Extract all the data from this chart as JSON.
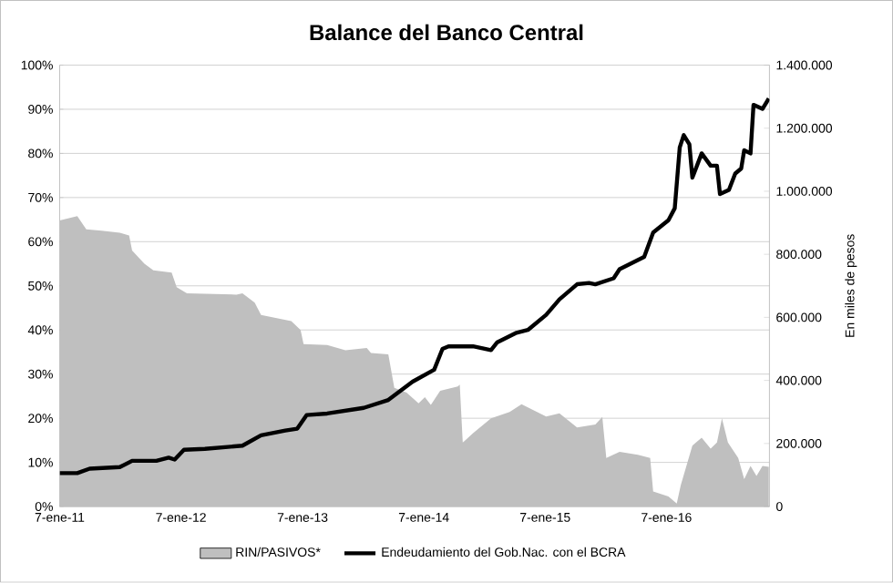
{
  "chart_data": {
    "type": "line",
    "title": "Balance del Banco Central",
    "y2label": "En miles de pesos",
    "xlim": [
      "2011-01-07",
      "2016-11-12"
    ],
    "xticks": [
      {
        "value": "2011-01-07",
        "label": "7-ene-11"
      },
      {
        "value": "2012-01-07",
        "label": "7-ene-12"
      },
      {
        "value": "2013-01-07",
        "label": "7-ene-13"
      },
      {
        "value": "2014-01-07",
        "label": "7-ene-14"
      },
      {
        "value": "2015-01-07",
        "label": "7-ene-15"
      },
      {
        "value": "2016-01-07",
        "label": "7-ene-16"
      }
    ],
    "ylim": [
      0,
      100
    ],
    "yticks": [
      {
        "value": 0,
        "label": "0%"
      },
      {
        "value": 10,
        "label": "10%"
      },
      {
        "value": 20,
        "label": "20%"
      },
      {
        "value": 30,
        "label": "30%"
      },
      {
        "value": 40,
        "label": "40%"
      },
      {
        "value": 50,
        "label": "50%"
      },
      {
        "value": 60,
        "label": "60%"
      },
      {
        "value": 70,
        "label": "70%"
      },
      {
        "value": 80,
        "label": "80%"
      },
      {
        "value": 90,
        "label": "90%"
      },
      {
        "value": 100,
        "label": "100%"
      }
    ],
    "y2lim": [
      0,
      1400000
    ],
    "y2ticks": [
      0,
      {
        "value": 200000,
        "label": "200.000"
      },
      {
        "value": 400000,
        "label": "400.000"
      },
      {
        "value": 600000,
        "label": "600.000"
      },
      {
        "value": 800000,
        "label": "800.000"
      },
      {
        "value": 1000000,
        "label": "1.000.000"
      },
      {
        "value": 1200000,
        "label": "1.200.000"
      },
      {
        "value": 1400000,
        "label": "1.400.000"
      }
    ],
    "grid": "y",
    "legend": "bottom",
    "series": [
      {
        "name": "RIN/PASIVOS*",
        "type": "area",
        "color": "#bfbfbf",
        "x": [
          "2011-01-07",
          "2011-03-01",
          "2011-03-28",
          "2011-05-13",
          "2011-07-07",
          "2011-08-04",
          "2011-08-13",
          "2011-09-19",
          "2011-10-16",
          "2011-12-10",
          "2011-12-25",
          "2012-01-25",
          "2012-06-22",
          "2012-07-10",
          "2012-08-16",
          "2012-09-04",
          "2012-12-04",
          "2013-01-01",
          "2013-01-10",
          "2013-03-22",
          "2013-05-16",
          "2013-07-19",
          "2013-08-01",
          "2013-09-22",
          "2013-10-10",
          "2013-11-16",
          "2013-12-22",
          "2014-01-10",
          "2014-01-28",
          "2014-02-25",
          "2014-04-19",
          "2014-04-25",
          "2014-05-04",
          "2014-06-04",
          "2014-07-28",
          "2014-09-22",
          "2014-10-28",
          "2015-01-10",
          "2015-02-19",
          "2015-04-13",
          "2015-06-07",
          "2015-06-28",
          "2015-07-10",
          "2015-08-19",
          "2015-10-13",
          "2015-11-19",
          "2015-11-28",
          "2016-01-13",
          "2016-02-07",
          "2016-02-19",
          "2016-03-25",
          "2016-04-22",
          "2016-05-19",
          "2016-06-07",
          "2016-06-22",
          "2016-07-10",
          "2016-08-10",
          "2016-08-28",
          "2016-09-16",
          "2016-10-04",
          "2016-10-22",
          "2016-11-10"
        ],
        "values": [
          64.8,
          65.8,
          62.8,
          62.5,
          62,
          61.4,
          58,
          55,
          53.5,
          53,
          49.7,
          48.3,
          48,
          48.3,
          46.2,
          43.4,
          42,
          40,
          36.8,
          36.6,
          35.4,
          35.9,
          34.8,
          34.5,
          26.9,
          25.8,
          23.4,
          24.8,
          23,
          26.2,
          27.2,
          27.6,
          14.5,
          16.6,
          20,
          21.4,
          23.2,
          20.4,
          21.1,
          17.9,
          18.6,
          20.3,
          11,
          12.4,
          11.7,
          11,
          3.4,
          2.3,
          0.7,
          4.8,
          13.8,
          15.6,
          13.1,
          14.5,
          20,
          14.5,
          11,
          6.2,
          9.2,
          6.9,
          9.2,
          9
        ]
      },
      {
        "name": "Endeudamiento del Gob.Nac. con el BCRA",
        "axis": "y2",
        "color": "#000000",
        "x": [
          "2011-01-07",
          "2011-03-01",
          "2011-04-07",
          "2011-07-07",
          "2011-08-13",
          "2011-10-25",
          "2011-12-01",
          "2011-12-19",
          "2012-01-16",
          "2012-03-19",
          "2012-07-10",
          "2012-09-04",
          "2012-11-16",
          "2012-12-22",
          "2013-01-19",
          "2013-03-22",
          "2013-07-10",
          "2013-09-22",
          "2013-12-04",
          "2014-02-07",
          "2014-03-04",
          "2014-03-22",
          "2014-06-04",
          "2014-07-28",
          "2014-08-16",
          "2014-10-10",
          "2014-11-16",
          "2015-01-10",
          "2015-02-19",
          "2015-04-13",
          "2015-05-19",
          "2015-06-07",
          "2015-08-01",
          "2015-08-19",
          "2015-11-01",
          "2015-11-28",
          "2016-01-13",
          "2016-02-01",
          "2016-02-16",
          "2016-02-28",
          "2016-03-16",
          "2016-03-25",
          "2016-04-22",
          "2016-05-19",
          "2016-06-07",
          "2016-06-16",
          "2016-07-13",
          "2016-08-01",
          "2016-08-19",
          "2016-08-28",
          "2016-09-16",
          "2016-09-25",
          "2016-10-22",
          "2016-11-10"
        ],
        "values": [
          106000,
          106000,
          120000,
          125000,
          145000,
          145000,
          155000,
          149000,
          180000,
          183000,
          193000,
          226000,
          241000,
          247000,
          290000,
          295000,
          313000,
          338000,
          396000,
          434000,
          500000,
          508000,
          508000,
          496000,
          521000,
          550000,
          560000,
          608000,
          657000,
          705000,
          709000,
          705000,
          724000,
          753000,
          792000,
          869000,
          908000,
          946000,
          1139000,
          1178000,
          1149000,
          1043000,
          1120000,
          1081000,
          1081000,
          991000,
          1004000,
          1056000,
          1072000,
          1130000,
          1120000,
          1274000,
          1261000,
          1294000
        ]
      }
    ]
  }
}
